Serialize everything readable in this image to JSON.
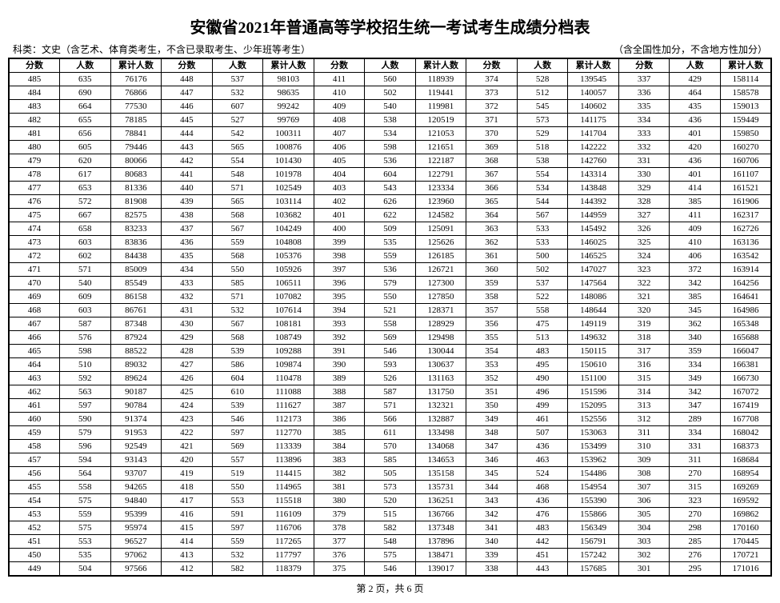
{
  "title": "安徽省2021年普通高等学校招生统一考试考生成绩分档表",
  "subhead_left": "科类：文史（含艺术、体育类考生，不含已录取考生、少年班等考生）",
  "subhead_right": "（含全国性加分，不含地方性加分）",
  "footer": "第 2 页，共 6 页",
  "col_labels": [
    "分数",
    "人数",
    "累计人数"
  ],
  "blocks": [
    [
      [
        485,
        635,
        76176
      ],
      [
        484,
        690,
        76866
      ],
      [
        483,
        664,
        77530
      ],
      [
        482,
        655,
        78185
      ],
      [
        481,
        656,
        78841
      ],
      [
        480,
        605,
        79446
      ],
      [
        479,
        620,
        80066
      ],
      [
        478,
        617,
        80683
      ],
      [
        477,
        653,
        81336
      ],
      [
        476,
        572,
        81908
      ],
      [
        475,
        667,
        82575
      ],
      [
        474,
        658,
        83233
      ],
      [
        473,
        603,
        83836
      ],
      [
        472,
        602,
        84438
      ],
      [
        471,
        571,
        85009
      ],
      [
        470,
        540,
        85549
      ],
      [
        469,
        609,
        86158
      ],
      [
        468,
        603,
        86761
      ],
      [
        467,
        587,
        87348
      ],
      [
        466,
        576,
        87924
      ],
      [
        465,
        598,
        88522
      ],
      [
        464,
        510,
        89032
      ],
      [
        463,
        592,
        89624
      ],
      [
        462,
        563,
        90187
      ],
      [
        461,
        597,
        90784
      ],
      [
        460,
        590,
        91374
      ],
      [
        459,
        579,
        91953
      ],
      [
        458,
        596,
        92549
      ],
      [
        457,
        594,
        93143
      ],
      [
        456,
        564,
        93707
      ],
      [
        455,
        558,
        94265
      ],
      [
        454,
        575,
        94840
      ],
      [
        453,
        559,
        95399
      ],
      [
        452,
        575,
        95974
      ],
      [
        451,
        553,
        96527
      ],
      [
        450,
        535,
        97062
      ],
      [
        449,
        504,
        97566
      ]
    ],
    [
      [
        448,
        537,
        98103
      ],
      [
        447,
        532,
        98635
      ],
      [
        446,
        607,
        99242
      ],
      [
        445,
        527,
        99769
      ],
      [
        444,
        542,
        100311
      ],
      [
        443,
        565,
        100876
      ],
      [
        442,
        554,
        101430
      ],
      [
        441,
        548,
        101978
      ],
      [
        440,
        571,
        102549
      ],
      [
        439,
        565,
        103114
      ],
      [
        438,
        568,
        103682
      ],
      [
        437,
        567,
        104249
      ],
      [
        436,
        559,
        104808
      ],
      [
        435,
        568,
        105376
      ],
      [
        434,
        550,
        105926
      ],
      [
        433,
        585,
        106511
      ],
      [
        432,
        571,
        107082
      ],
      [
        431,
        532,
        107614
      ],
      [
        430,
        567,
        108181
      ],
      [
        429,
        568,
        108749
      ],
      [
        428,
        539,
        109288
      ],
      [
        427,
        586,
        109874
      ],
      [
        426,
        604,
        110478
      ],
      [
        425,
        610,
        111088
      ],
      [
        424,
        539,
        111627
      ],
      [
        423,
        546,
        112173
      ],
      [
        422,
        597,
        112770
      ],
      [
        421,
        569,
        113339
      ],
      [
        420,
        557,
        113896
      ],
      [
        419,
        519,
        114415
      ],
      [
        418,
        550,
        114965
      ],
      [
        417,
        553,
        115518
      ],
      [
        416,
        591,
        116109
      ],
      [
        415,
        597,
        116706
      ],
      [
        414,
        559,
        117265
      ],
      [
        413,
        532,
        117797
      ],
      [
        412,
        582,
        118379
      ]
    ],
    [
      [
        411,
        560,
        118939
      ],
      [
        410,
        502,
        119441
      ],
      [
        409,
        540,
        119981
      ],
      [
        408,
        538,
        120519
      ],
      [
        407,
        534,
        121053
      ],
      [
        406,
        598,
        121651
      ],
      [
        405,
        536,
        122187
      ],
      [
        404,
        604,
        122791
      ],
      [
        403,
        543,
        123334
      ],
      [
        402,
        626,
        123960
      ],
      [
        401,
        622,
        124582
      ],
      [
        400,
        509,
        125091
      ],
      [
        399,
        535,
        125626
      ],
      [
        398,
        559,
        126185
      ],
      [
        397,
        536,
        126721
      ],
      [
        396,
        579,
        127300
      ],
      [
        395,
        550,
        127850
      ],
      [
        394,
        521,
        128371
      ],
      [
        393,
        558,
        128929
      ],
      [
        392,
        569,
        129498
      ],
      [
        391,
        546,
        130044
      ],
      [
        390,
        593,
        130637
      ],
      [
        389,
        526,
        131163
      ],
      [
        388,
        587,
        131750
      ],
      [
        387,
        571,
        132321
      ],
      [
        386,
        566,
        132887
      ],
      [
        385,
        611,
        133498
      ],
      [
        384,
        570,
        134068
      ],
      [
        383,
        585,
        134653
      ],
      [
        382,
        505,
        135158
      ],
      [
        381,
        573,
        135731
      ],
      [
        380,
        520,
        136251
      ],
      [
        379,
        515,
        136766
      ],
      [
        378,
        582,
        137348
      ],
      [
        377,
        548,
        137896
      ],
      [
        376,
        575,
        138471
      ],
      [
        375,
        546,
        139017
      ]
    ],
    [
      [
        374,
        528,
        139545
      ],
      [
        373,
        512,
        140057
      ],
      [
        372,
        545,
        140602
      ],
      [
        371,
        573,
        141175
      ],
      [
        370,
        529,
        141704
      ],
      [
        369,
        518,
        142222
      ],
      [
        368,
        538,
        142760
      ],
      [
        367,
        554,
        143314
      ],
      [
        366,
        534,
        143848
      ],
      [
        365,
        544,
        144392
      ],
      [
        364,
        567,
        144959
      ],
      [
        363,
        533,
        145492
      ],
      [
        362,
        533,
        146025
      ],
      [
        361,
        500,
        146525
      ],
      [
        360,
        502,
        147027
      ],
      [
        359,
        537,
        147564
      ],
      [
        358,
        522,
        148086
      ],
      [
        357,
        558,
        148644
      ],
      [
        356,
        475,
        149119
      ],
      [
        355,
        513,
        149632
      ],
      [
        354,
        483,
        150115
      ],
      [
        353,
        495,
        150610
      ],
      [
        352,
        490,
        151100
      ],
      [
        351,
        496,
        151596
      ],
      [
        350,
        499,
        152095
      ],
      [
        349,
        461,
        152556
      ],
      [
        348,
        507,
        153063
      ],
      [
        347,
        436,
        153499
      ],
      [
        346,
        463,
        153962
      ],
      [
        345,
        524,
        154486
      ],
      [
        344,
        468,
        154954
      ],
      [
        343,
        436,
        155390
      ],
      [
        342,
        476,
        155866
      ],
      [
        341,
        483,
        156349
      ],
      [
        340,
        442,
        156791
      ],
      [
        339,
        451,
        157242
      ],
      [
        338,
        443,
        157685
      ]
    ],
    [
      [
        337,
        429,
        158114
      ],
      [
        336,
        464,
        158578
      ],
      [
        335,
        435,
        159013
      ],
      [
        334,
        436,
        159449
      ],
      [
        333,
        401,
        159850
      ],
      [
        332,
        420,
        160270
      ],
      [
        331,
        436,
        160706
      ],
      [
        330,
        401,
        161107
      ],
      [
        329,
        414,
        161521
      ],
      [
        328,
        385,
        161906
      ],
      [
        327,
        411,
        162317
      ],
      [
        326,
        409,
        162726
      ],
      [
        325,
        410,
        163136
      ],
      [
        324,
        406,
        163542
      ],
      [
        323,
        372,
        163914
      ],
      [
        322,
        342,
        164256
      ],
      [
        321,
        385,
        164641
      ],
      [
        320,
        345,
        164986
      ],
      [
        319,
        362,
        165348
      ],
      [
        318,
        340,
        165688
      ],
      [
        317,
        359,
        166047
      ],
      [
        316,
        334,
        166381
      ],
      [
        315,
        349,
        166730
      ],
      [
        314,
        342,
        167072
      ],
      [
        313,
        347,
        167419
      ],
      [
        312,
        289,
        167708
      ],
      [
        311,
        334,
        168042
      ],
      [
        310,
        331,
        168373
      ],
      [
        309,
        311,
        168684
      ],
      [
        308,
        270,
        168954
      ],
      [
        307,
        315,
        169269
      ],
      [
        306,
        323,
        169592
      ],
      [
        305,
        270,
        169862
      ],
      [
        304,
        298,
        170160
      ],
      [
        303,
        285,
        170445
      ],
      [
        302,
        276,
        170721
      ],
      [
        301,
        295,
        171016
      ]
    ]
  ]
}
